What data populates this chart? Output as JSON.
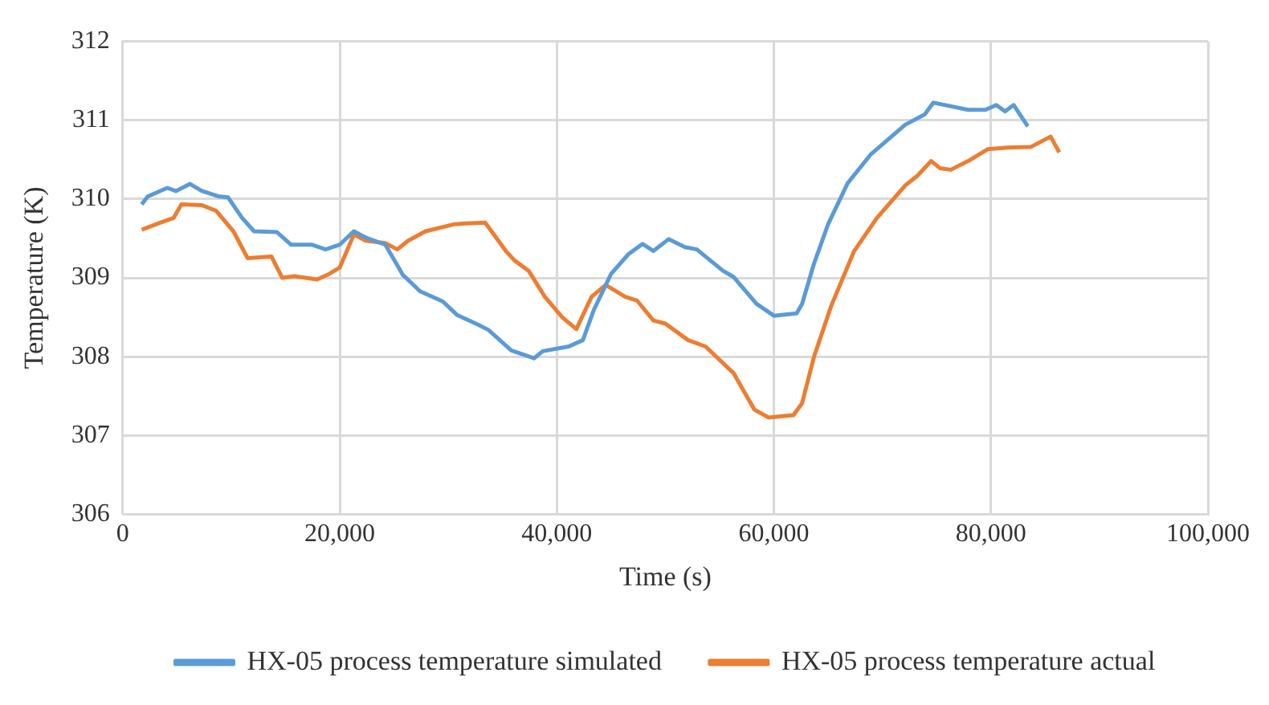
{
  "chart_data": {
    "type": "line",
    "xlabel": "Time (s)",
    "ylabel": "Temperature (K)",
    "xlim": [
      0,
      100000
    ],
    "xticks": [
      0,
      {
        "value": 20000,
        "label": "20,000"
      },
      {
        "value": 40000,
        "label": "40,000"
      },
      {
        "value": 60000,
        "label": "60,000"
      },
      {
        "value": 80000,
        "label": "80,000"
      },
      {
        "value": 100000,
        "label": "100,000"
      }
    ],
    "ylim": [
      306,
      312
    ],
    "yticks": [
      306,
      307,
      308,
      309,
      310,
      311,
      312
    ],
    "grid": true,
    "legend": "bottom",
    "marker": "none",
    "line_style": "solid",
    "series": [
      {
        "name": "HX-05 process temperature simulated",
        "color": "#5b9bd5",
        "x": [
          1750,
          2300,
          4100,
          4900,
          6200,
          7300,
          8900,
          9700,
          11000,
          12100,
          14200,
          15500,
          17400,
          18700,
          20000,
          21300,
          22400,
          24200,
          25800,
          27400,
          29500,
          30800,
          32700,
          33700,
          35800,
          37900,
          38700,
          41100,
          42400,
          43400,
          45000,
          46600,
          47900,
          48900,
          50300,
          51800,
          52900,
          55300,
          56300,
          58400,
          60000,
          62100,
          62600,
          63700,
          65000,
          66800,
          68900,
          72100,
          73900,
          74700,
          77900,
          79500,
          80500,
          81300,
          82100,
          83400
        ],
        "values": [
          309.93,
          310.03,
          310.14,
          310.1,
          310.19,
          310.1,
          310.03,
          310.02,
          309.76,
          309.59,
          309.58,
          309.42,
          309.42,
          309.36,
          309.42,
          309.59,
          309.51,
          309.42,
          309.04,
          308.83,
          308.7,
          308.53,
          308.41,
          308.34,
          308.08,
          307.98,
          308.07,
          308.13,
          308.21,
          308.59,
          309.05,
          309.3,
          309.43,
          309.34,
          309.49,
          309.39,
          309.36,
          309.09,
          309.01,
          308.67,
          308.52,
          308.55,
          308.67,
          309.18,
          309.68,
          310.2,
          310.56,
          310.94,
          311.07,
          311.22,
          311.13,
          311.13,
          311.19,
          311.11,
          311.19,
          310.92
        ]
      },
      {
        "name": "HX-05 process temperature actual",
        "color": "#ed7d31",
        "x": [
          1750,
          3300,
          4700,
          5400,
          7300,
          8600,
          10200,
          11500,
          13700,
          14700,
          15800,
          17900,
          18900,
          20000,
          21300,
          22400,
          24200,
          25300,
          26300,
          27900,
          30600,
          31600,
          33400,
          35300,
          36100,
          37400,
          38900,
          40500,
          41800,
          43200,
          44500,
          46300,
          47400,
          48900,
          50000,
          52100,
          53700,
          56300,
          58200,
          59500,
          61800,
          62600,
          63700,
          65300,
          67400,
          69500,
          72100,
          73200,
          74500,
          75300,
          76300,
          77900,
          79700,
          81600,
          83700,
          85500,
          86300
        ],
        "values": [
          309.61,
          309.69,
          309.76,
          309.93,
          309.92,
          309.85,
          309.59,
          309.25,
          309.27,
          309.0,
          309.02,
          308.98,
          309.04,
          309.13,
          309.55,
          309.47,
          309.44,
          309.36,
          309.47,
          309.59,
          309.68,
          309.69,
          309.7,
          309.34,
          309.22,
          309.09,
          308.76,
          308.5,
          308.35,
          308.76,
          308.91,
          308.76,
          308.71,
          308.46,
          308.42,
          308.21,
          308.13,
          307.79,
          307.33,
          307.23,
          307.26,
          307.41,
          308.0,
          308.65,
          309.34,
          309.76,
          310.17,
          310.29,
          310.48,
          310.39,
          310.37,
          310.48,
          310.63,
          310.65,
          310.66,
          310.79,
          310.59
        ]
      }
    ]
  }
}
